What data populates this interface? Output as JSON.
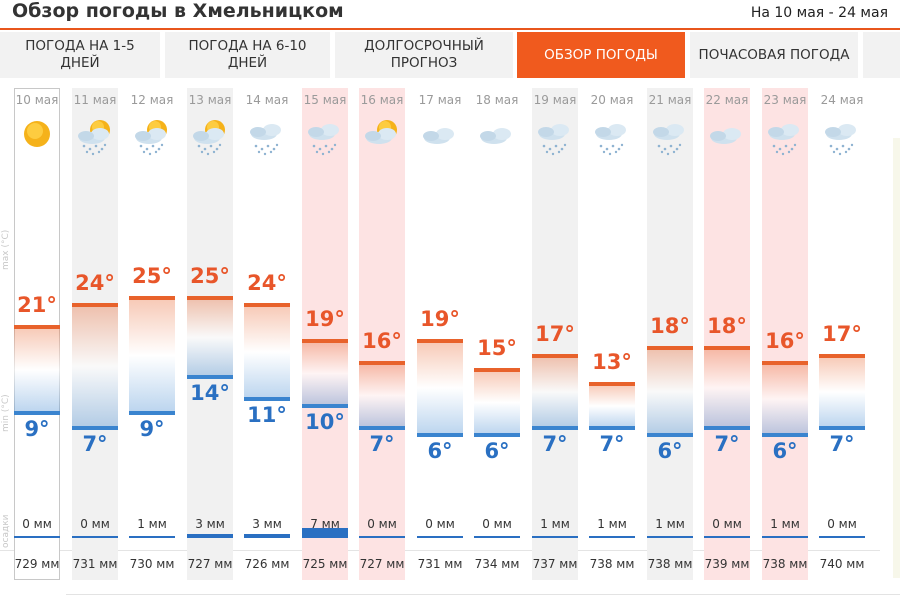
{
  "page": {
    "title": "Обзор погоды в Хмельницком",
    "range": "На 10 мая - 24 мая"
  },
  "tabs": [
    {
      "label": "ПОГОДА НА 1-5 ДНЕЙ",
      "active": false
    },
    {
      "label": "ПОГОДА НА 6-10 ДНЕЙ",
      "active": false
    },
    {
      "label": "ДОЛГОСРОЧНЫЙ ПРОГНОЗ",
      "active": false
    },
    {
      "label": "ОБЗОР ПОГОДЫ",
      "active": true
    },
    {
      "label": "ПОЧАСОВАЯ ПОГОДА",
      "active": false
    }
  ],
  "row_labels": {
    "max": "max (°C)",
    "min": "min (°C)",
    "precip": "осадки"
  },
  "colors": {
    "accent": "#f05a1e",
    "max_temp": "#e8562a",
    "min_temp": "#2a70c2",
    "pink_day": "#fde3e3",
    "gray_day": "#f1f1f1"
  },
  "chart_data": {
    "type": "bar",
    "categories": [
      "10 мая",
      "11 мая",
      "12 мая",
      "13 мая",
      "14 мая",
      "15 мая",
      "16 мая",
      "17 мая",
      "18 мая",
      "19 мая",
      "20 мая",
      "21 мая",
      "22 мая",
      "23 мая",
      "24 мая"
    ],
    "series": [
      {
        "values": [
          21,
          24,
          25,
          25,
          24,
          19,
          16,
          19,
          15,
          17,
          13,
          18,
          18,
          16,
          17
        ]
      },
      {
        "values": [
          9,
          7,
          9,
          14,
          11,
          10,
          7,
          6,
          6,
          7,
          7,
          6,
          7,
          6,
          7
        ]
      }
    ],
    "ylim": [
      0,
      30
    ]
  },
  "days": [
    {
      "date": "10 мая",
      "max": "21°",
      "min": "9°",
      "precip": "0 мм",
      "precip_mm": 0,
      "pressure": "729 мм",
      "icon": "sun-icon",
      "shade": "today"
    },
    {
      "date": "11 мая",
      "max": "24°",
      "min": "7°",
      "precip": "0 мм",
      "precip_mm": 0,
      "pressure": "731 мм",
      "icon": "sun-cloud-rain-icon",
      "shade": "light"
    },
    {
      "date": "12 мая",
      "max": "25°",
      "min": "9°",
      "precip": "1 мм",
      "precip_mm": 1,
      "pressure": "730 мм",
      "icon": "sun-cloud-rain-icon",
      "shade": "none"
    },
    {
      "date": "13 мая",
      "max": "25°",
      "min": "14°",
      "precip": "3 мм",
      "precip_mm": 3,
      "pressure": "727 мм",
      "icon": "sun-cloud-rain-icon",
      "shade": "light"
    },
    {
      "date": "14 мая",
      "max": "24°",
      "min": "11°",
      "precip": "3 мм",
      "precip_mm": 3,
      "pressure": "726 мм",
      "icon": "cloud-rain-icon",
      "shade": "none"
    },
    {
      "date": "15 мая",
      "max": "19°",
      "min": "10°",
      "precip": "7 мм",
      "precip_mm": 7,
      "pressure": "725 мм",
      "icon": "cloud-rain-icon",
      "shade": "pink"
    },
    {
      "date": "16 мая",
      "max": "16°",
      "min": "7°",
      "precip": "0 мм",
      "precip_mm": 0,
      "pressure": "727 мм",
      "icon": "sun-cloud-icon",
      "shade": "pink"
    },
    {
      "date": "17 мая",
      "max": "19°",
      "min": "6°",
      "precip": "0 мм",
      "precip_mm": 0,
      "pressure": "731 мм",
      "icon": "cloud-icon",
      "shade": "none"
    },
    {
      "date": "18 мая",
      "max": "15°",
      "min": "6°",
      "precip": "0 мм",
      "precip_mm": 0,
      "pressure": "734 мм",
      "icon": "cloud-icon",
      "shade": "none"
    },
    {
      "date": "19 мая",
      "max": "17°",
      "min": "7°",
      "precip": "1 мм",
      "precip_mm": 1,
      "pressure": "737 мм",
      "icon": "cloud-rain-icon",
      "shade": "light"
    },
    {
      "date": "20 мая",
      "max": "13°",
      "min": "7°",
      "precip": "1 мм",
      "precip_mm": 1,
      "pressure": "738 мм",
      "icon": "cloud-rain-icon",
      "shade": "none"
    },
    {
      "date": "21 мая",
      "max": "18°",
      "min": "6°",
      "precip": "1 мм",
      "precip_mm": 1,
      "pressure": "738 мм",
      "icon": "cloud-rain-icon",
      "shade": "light"
    },
    {
      "date": "22 мая",
      "max": "18°",
      "min": "7°",
      "precip": "0 мм",
      "precip_mm": 0,
      "pressure": "739 мм",
      "icon": "cloud-icon",
      "shade": "pink"
    },
    {
      "date": "23 мая",
      "max": "16°",
      "min": "6°",
      "precip": "1 мм",
      "precip_mm": 1,
      "pressure": "738 мм",
      "icon": "cloud-rain-icon",
      "shade": "pink"
    },
    {
      "date": "24 мая",
      "max": "17°",
      "min": "7°",
      "precip": "0 мм",
      "precip_mm": 0,
      "pressure": "740 мм",
      "icon": "cloud-rain-icon",
      "shade": "none"
    }
  ]
}
